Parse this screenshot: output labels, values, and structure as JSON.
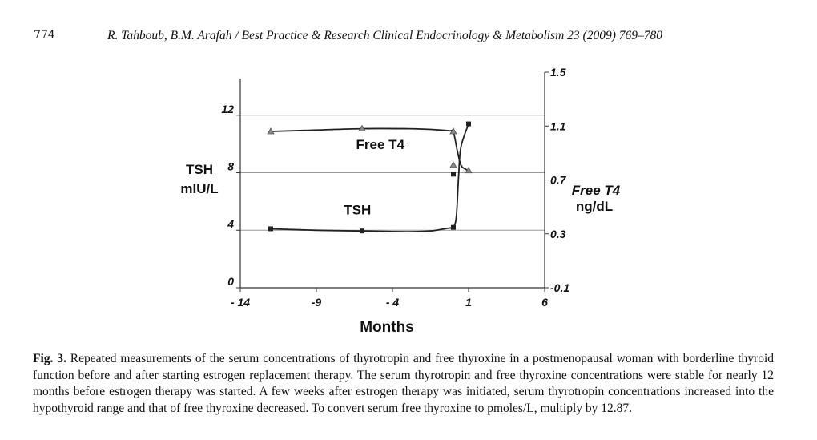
{
  "page": {
    "number": "774",
    "running_head": "R. Tahboub, B.M. Arafah / Best Practice & Research Clinical Endocrinology & Metabolism 23 (2009) 769–780"
  },
  "caption": {
    "label": "Fig. 3.",
    "text": "Repeated measurements of the serum concentrations of thyrotropin and free thyroxine in a postmenopausal woman with borderline thyroid function before and after starting estrogen replacement therapy. The serum thyrotropin and free thyroxine concentrations were stable for nearly 12 months before estrogen therapy was started. A few weeks after estrogen therapy was initiated, serum thyrotropin concentrations increased into the hypothyroid range and that of free thyroxine decreased. To convert serum free thyroxine to pmoles/L, multiply by 12.87."
  },
  "chart_data": {
    "type": "line",
    "title": "",
    "xlabel": "Months",
    "xlim": [
      -14,
      6
    ],
    "xticks": [
      -14,
      -9,
      -4,
      1,
      6
    ],
    "xtick_labels": [
      "- 14",
      "-9",
      "- 4",
      "1",
      "6"
    ],
    "ylabel_lines": [
      "TSH",
      "mIU/L"
    ],
    "ylim": [
      0,
      15
    ],
    "yticks": [
      0,
      4,
      8,
      12
    ],
    "y2label_lines": [
      "Free T4",
      "ng/dL"
    ],
    "y2lim": [
      -0.1,
      1.5
    ],
    "y2ticks": [
      -0.1,
      0.3,
      0.7,
      1.1,
      1.5
    ],
    "grid": "horizontal",
    "series": [
      {
        "name": "TSH",
        "axis": "left",
        "marker": "square",
        "x": [
          -12,
          -6,
          0,
          0,
          1
        ],
        "y": [
          4.1,
          3.95,
          4.2,
          7.9,
          11.4
        ],
        "curve": [
          [
            -12,
            4.1
          ],
          [
            -9,
            4.0
          ],
          [
            -6,
            3.95
          ],
          [
            -3,
            3.9
          ],
          [
            -1.5,
            3.95
          ],
          [
            -0.3,
            4.15
          ],
          [
            0.0,
            4.2
          ],
          [
            0.2,
            5.0
          ],
          [
            0.35,
            7.9
          ],
          [
            0.5,
            9.8
          ],
          [
            1.0,
            11.4
          ]
        ]
      },
      {
        "name": "Free T4",
        "axis": "right",
        "marker": "triangle",
        "x": [
          -12,
          -6,
          0,
          0,
          1
        ],
        "y": [
          1.06,
          1.08,
          1.06,
          0.81,
          0.77
        ],
        "curve": [
          [
            -12,
            1.06
          ],
          [
            -9,
            1.07
          ],
          [
            -6,
            1.08
          ],
          [
            -3,
            1.08
          ],
          [
            -1.5,
            1.075
          ],
          [
            -0.3,
            1.065
          ],
          [
            0.0,
            1.055
          ],
          [
            0.25,
            0.92
          ],
          [
            0.5,
            0.81
          ],
          [
            0.8,
            0.78
          ],
          [
            1.0,
            0.77
          ]
        ]
      }
    ]
  }
}
